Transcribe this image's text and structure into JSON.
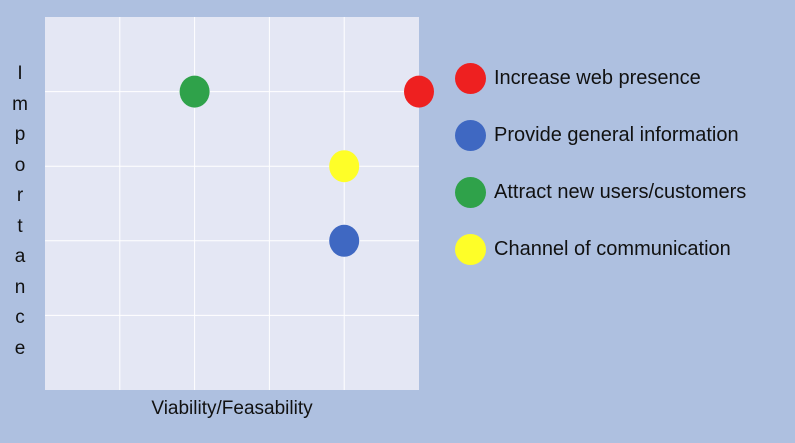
{
  "chart_data": {
    "type": "scatter",
    "title": "",
    "xlabel": "Viability/Feasability",
    "ylabel": "Importance",
    "xlim": [
      0,
      5
    ],
    "ylim": [
      0,
      5
    ],
    "grid": true,
    "legend_position": "right",
    "series": [
      {
        "name": "Increase web presence",
        "color": "#ee2020",
        "points": [
          {
            "x": 5,
            "y": 4
          }
        ]
      },
      {
        "name": "Provide general information",
        "color": "#3f68c2",
        "points": [
          {
            "x": 4,
            "y": 2
          }
        ]
      },
      {
        "name": "Attract new users/customers",
        "color": "#2fa24a",
        "points": [
          {
            "x": 2,
            "y": 4
          }
        ]
      },
      {
        "name": "Channel of communication",
        "color": "#fefe28",
        "points": [
          {
            "x": 4,
            "y": 3
          }
        ]
      }
    ]
  }
}
